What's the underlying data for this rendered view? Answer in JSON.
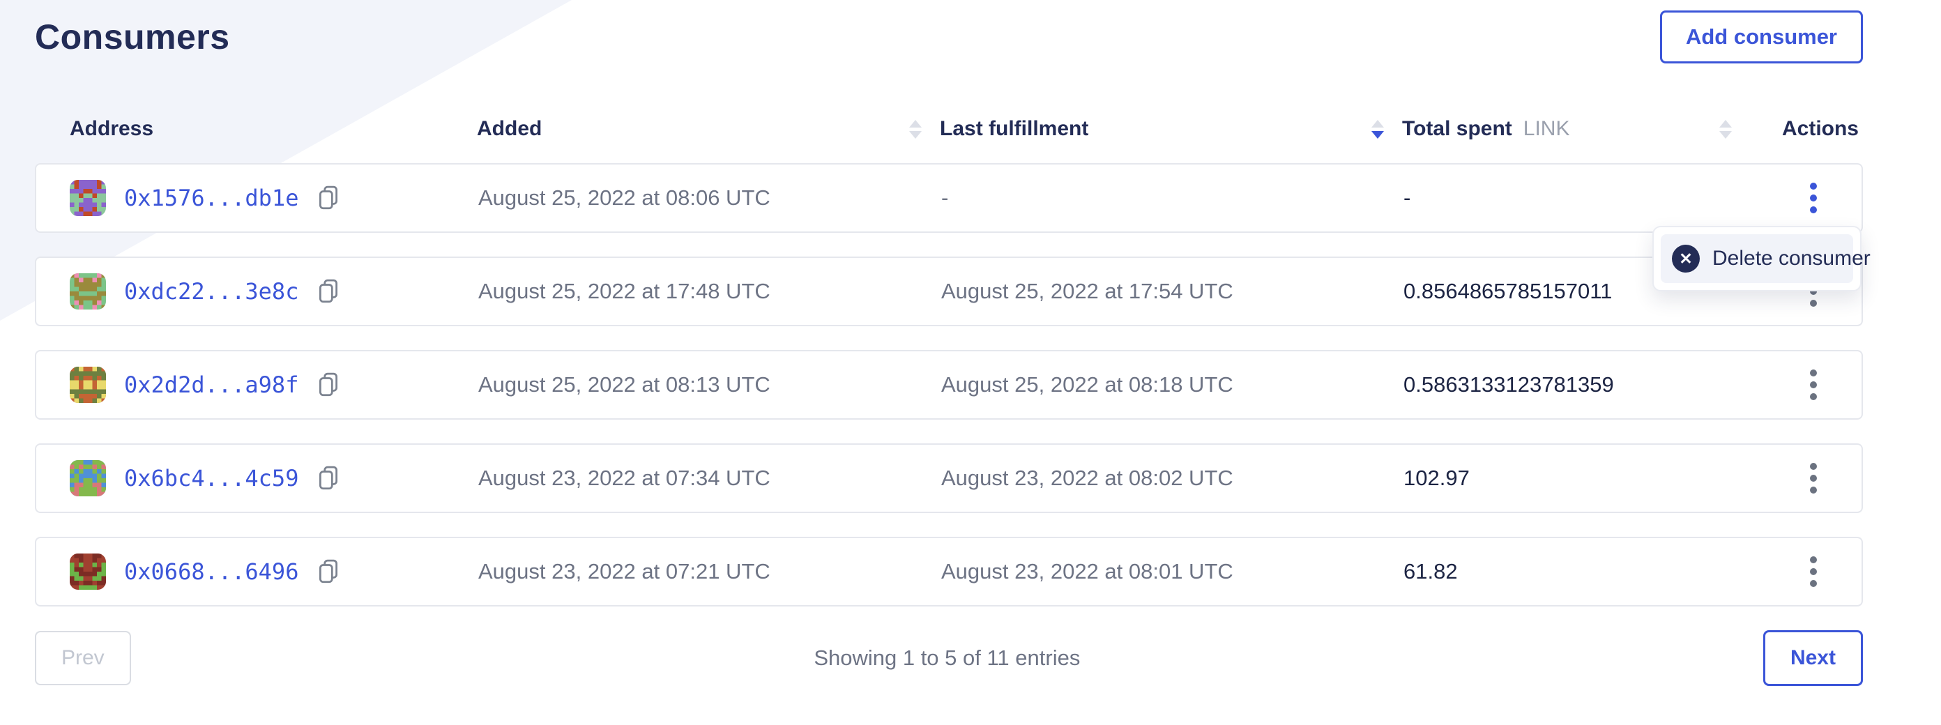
{
  "page": {
    "title": "Consumers"
  },
  "header": {
    "add_button_label": "Add consumer"
  },
  "table": {
    "columns": [
      {
        "label": "Address",
        "sortable": false,
        "sort": "none"
      },
      {
        "label": "Added",
        "sortable": true,
        "sort": "none"
      },
      {
        "label": "Last fulfillment",
        "sortable": true,
        "sort": "desc"
      },
      {
        "label": "Total spent",
        "unit": "LINK",
        "sortable": true,
        "sort": "none"
      },
      {
        "label": "Actions",
        "sortable": false,
        "sort": "none"
      }
    ],
    "rows": [
      {
        "address": "0x1576...db1e",
        "added": "August 25, 2022 at 08:06 UTC",
        "last_fulfillment": "-",
        "total_spent": "-",
        "kebab_active": true,
        "avatar_colors": {
          "bg": "#8cc79c",
          "main": "#8a63cc",
          "spot": "#c04a28"
        }
      },
      {
        "address": "0xdc22...3e8c",
        "added": "August 25, 2022 at 17:48 UTC",
        "last_fulfillment": "August 25, 2022 at 17:54 UTC",
        "total_spent": "0.8564865785157011",
        "kebab_active": false,
        "avatar_colors": {
          "bg": "#7cc488",
          "main": "#9a8a3c",
          "spot": "#ee8fb4"
        }
      },
      {
        "address": "0x2d2d...a98f",
        "added": "August 25, 2022 at 08:13 UTC",
        "last_fulfillment": "August 25, 2022 at 08:18 UTC",
        "total_spent": "0.5863133123781359",
        "kebab_active": false,
        "avatar_colors": {
          "bg": "#c46434",
          "main": "#6d8040",
          "spot": "#e8d96b"
        }
      },
      {
        "address": "0x6bc4...4c59",
        "added": "August 23, 2022 at 07:34 UTC",
        "last_fulfillment": "August 23, 2022 at 08:02 UTC",
        "total_spent": "102.97",
        "kebab_active": false,
        "avatar_colors": {
          "bg": "#5090d8",
          "main": "#84b84c",
          "spot": "#d87878"
        }
      },
      {
        "address": "0x0668...6496",
        "added": "August 23, 2022 at 07:21 UTC",
        "last_fulfillment": "August 23, 2022 at 08:01 UTC",
        "total_spent": "61.82",
        "kebab_active": false,
        "avatar_colors": {
          "bg": "#a04030",
          "main": "#7c2c24",
          "spot": "#6cb448"
        }
      }
    ]
  },
  "menu": {
    "visible": true,
    "delete_label": "Delete consumer",
    "icon": "circle-x-icon"
  },
  "pagination": {
    "prev_label": "Prev",
    "summary": "Showing 1 to 5 of 11 entries",
    "next_label": "Next"
  },
  "colors": {
    "accent": "#3b55d8",
    "navy": "#232c56",
    "text_gray": "#6d7384",
    "border": "#e5e7ed",
    "bg_accent": "#f2f4fa"
  }
}
